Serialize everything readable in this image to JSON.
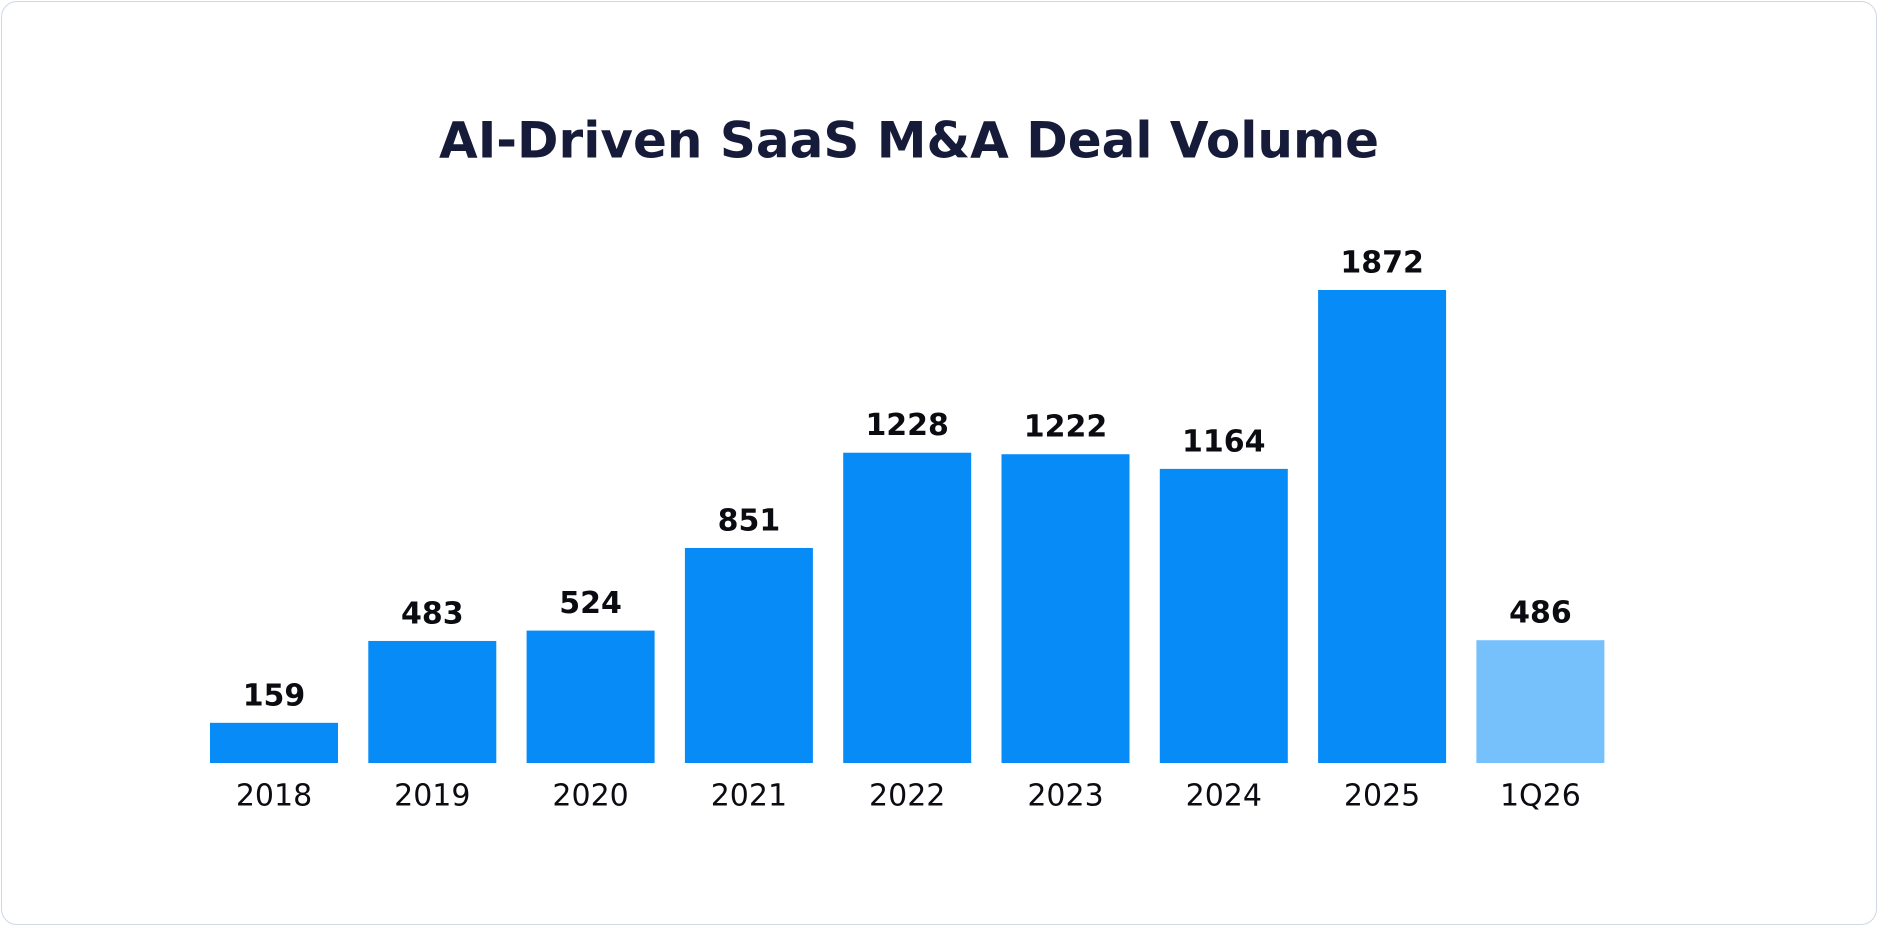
{
  "chart_data": {
    "type": "bar",
    "title": "AI-Driven SaaS M&A Deal Volume",
    "categories": [
      "2018",
      "2019",
      "2020",
      "2021",
      "2022",
      "2023",
      "2024",
      "2025",
      "1Q26"
    ],
    "values": [
      159,
      483,
      524,
      851,
      1228,
      1222,
      1164,
      1872,
      486
    ],
    "colors": [
      "#078bf7",
      "#078bf7",
      "#078bf7",
      "#078bf7",
      "#078bf7",
      "#078bf7",
      "#078bf7",
      "#078bf7",
      "#76c1fc"
    ]
  }
}
